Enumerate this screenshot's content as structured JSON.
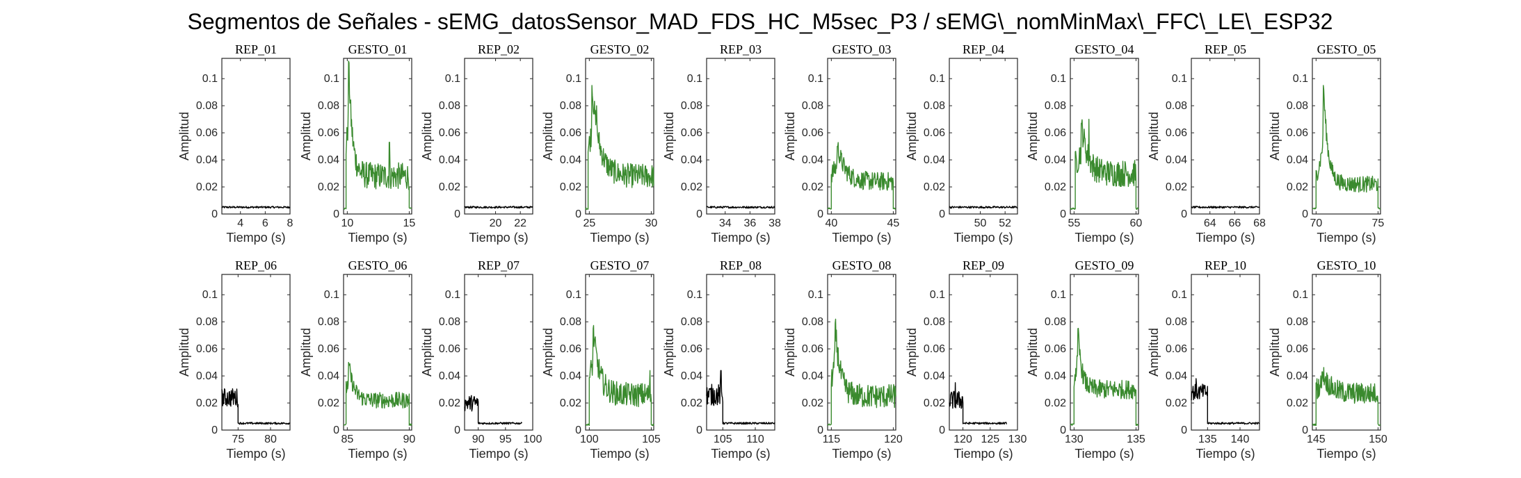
{
  "title": "Segmentos de Señales - sEMG_datosSensor_MAD_FDS_HC_M5sec_P3 / sEMG\\_nomMinMax\\_FFC\\_LE\\_ESP32",
  "colors": {
    "rep": "#000000",
    "gesto": "#3a8a2e"
  },
  "chart_data": [
    {
      "type": "line",
      "title": "REP_01",
      "xlabel": "Tiempo (s)",
      "ylabel": "Amplitud",
      "kind": "rep",
      "xlim": [
        2.5,
        8
      ],
      "xticks": [
        4,
        6,
        8
      ],
      "ylim": [
        0,
        0.115
      ],
      "yticks": [
        0,
        0.02,
        0.04,
        0.06,
        0.08,
        0.1
      ],
      "segments": [
        {
          "x0": 2.5,
          "x1": 8,
          "base": 0.005,
          "noise": 0.0007
        }
      ]
    },
    {
      "type": "line",
      "title": "GESTO_01",
      "xlabel": "Tiempo (s)",
      "ylabel": "Amplitud",
      "kind": "gesto",
      "xlim": [
        9.7,
        15.2
      ],
      "xticks": [
        10,
        15
      ],
      "ylim": [
        0,
        0.115
      ],
      "yticks": [
        0,
        0.02,
        0.04,
        0.06,
        0.08,
        0.1
      ],
      "segments": [
        {
          "x0": 9.7,
          "x1": 9.9,
          "base": 0.004,
          "noise": 0.0006
        },
        {
          "x0": 9.9,
          "x1": 15.0,
          "base": 0.028,
          "noise": 0.01,
          "peak": 0.113,
          "peak_x": 10.1,
          "decay": 0.3,
          "spike": 0.053,
          "spike_x": 13.4
        },
        {
          "x0": 15.0,
          "x1": 15.2,
          "base": 0.004,
          "noise": 0.0006
        }
      ]
    },
    {
      "type": "line",
      "title": "REP_02",
      "xlabel": "Tiempo (s)",
      "ylabel": "Amplitud",
      "kind": "rep",
      "xlim": [
        17.5,
        23
      ],
      "xticks": [
        20,
        22
      ],
      "ylim": [
        0,
        0.115
      ],
      "yticks": [
        0,
        0.02,
        0.04,
        0.06,
        0.08,
        0.1
      ],
      "segments": [
        {
          "x0": 17.5,
          "x1": 23,
          "base": 0.005,
          "noise": 0.0007
        }
      ]
    },
    {
      "type": "line",
      "title": "GESTO_02",
      "xlabel": "Tiempo (s)",
      "ylabel": "Amplitud",
      "kind": "gesto",
      "xlim": [
        24.7,
        30.2
      ],
      "xticks": [
        25,
        30
      ],
      "ylim": [
        0,
        0.115
      ],
      "yticks": [
        0,
        0.02,
        0.04,
        0.06,
        0.08,
        0.1
      ],
      "segments": [
        {
          "x0": 24.7,
          "x1": 24.9,
          "base": 0.004,
          "noise": 0.0006
        },
        {
          "x0": 24.9,
          "x1": 30.2,
          "base": 0.028,
          "noise": 0.009,
          "peak": 0.095,
          "peak_x": 25.2,
          "decay": 0.6,
          "spike": 0.08,
          "spike_x": 25.6
        }
      ]
    },
    {
      "type": "line",
      "title": "REP_03",
      "xlabel": "Tiempo (s)",
      "ylabel": "Amplitud",
      "kind": "rep",
      "xlim": [
        32.5,
        38
      ],
      "xticks": [
        34,
        36,
        38
      ],
      "ylim": [
        0,
        0.115
      ],
      "yticks": [
        0,
        0.02,
        0.04,
        0.06,
        0.08,
        0.1
      ],
      "segments": [
        {
          "x0": 32.5,
          "x1": 38,
          "base": 0.005,
          "noise": 0.0007
        }
      ]
    },
    {
      "type": "line",
      "title": "GESTO_03",
      "xlabel": "Tiempo (s)",
      "ylabel": "Amplitud",
      "kind": "gesto",
      "xlim": [
        39.7,
        45.2
      ],
      "xticks": [
        40,
        45
      ],
      "ylim": [
        0,
        0.115
      ],
      "yticks": [
        0,
        0.02,
        0.04,
        0.06,
        0.08,
        0.1
      ],
      "segments": [
        {
          "x0": 39.7,
          "x1": 40.0,
          "base": 0.004,
          "noise": 0.0006
        },
        {
          "x0": 40.0,
          "x1": 45.0,
          "base": 0.024,
          "noise": 0.007,
          "peak": 0.05,
          "peak_x": 40.5,
          "decay": 0.6
        },
        {
          "x0": 45.0,
          "x1": 45.2,
          "base": 0.004,
          "noise": 0.0006
        }
      ]
    },
    {
      "type": "line",
      "title": "REP_04",
      "xlabel": "Tiempo (s)",
      "ylabel": "Amplitud",
      "kind": "rep",
      "xlim": [
        47.5,
        53
      ],
      "xticks": [
        50,
        52
      ],
      "ylim": [
        0,
        0.115
      ],
      "yticks": [
        0,
        0.02,
        0.04,
        0.06,
        0.08,
        0.1
      ],
      "segments": [
        {
          "x0": 47.5,
          "x1": 53,
          "base": 0.005,
          "noise": 0.0007
        }
      ]
    },
    {
      "type": "line",
      "title": "GESTO_04",
      "xlabel": "Tiempo (s)",
      "ylabel": "Amplitud",
      "kind": "gesto",
      "xlim": [
        54.7,
        60.2
      ],
      "xticks": [
        55,
        60
      ],
      "ylim": [
        0,
        0.115
      ],
      "yticks": [
        0,
        0.02,
        0.04,
        0.06,
        0.08,
        0.1
      ],
      "segments": [
        {
          "x0": 54.7,
          "x1": 55.1,
          "base": 0.004,
          "noise": 0.0006
        },
        {
          "x0": 55.1,
          "x1": 60.0,
          "base": 0.03,
          "noise": 0.01,
          "peak": 0.067,
          "peak_x": 55.6,
          "decay": 0.5,
          "spike": 0.07,
          "spike_x": 56.2
        },
        {
          "x0": 60.0,
          "x1": 60.2,
          "base": 0.004,
          "noise": 0.0006
        }
      ]
    },
    {
      "type": "line",
      "title": "REP_05",
      "xlabel": "Tiempo (s)",
      "ylabel": "Amplitud",
      "kind": "rep",
      "xlim": [
        62.5,
        68
      ],
      "xticks": [
        64,
        66,
        68
      ],
      "ylim": [
        0,
        0.115
      ],
      "yticks": [
        0,
        0.02,
        0.04,
        0.06,
        0.08,
        0.1
      ],
      "segments": [
        {
          "x0": 62.5,
          "x1": 68,
          "base": 0.005,
          "noise": 0.0007
        }
      ]
    },
    {
      "type": "line",
      "title": "GESTO_05",
      "xlabel": "Tiempo (s)",
      "ylabel": "Amplitud",
      "kind": "gesto",
      "xlim": [
        69.7,
        75.2
      ],
      "xticks": [
        70,
        75
      ],
      "ylim": [
        0,
        0.115
      ],
      "yticks": [
        0,
        0.02,
        0.04,
        0.06,
        0.08,
        0.1
      ],
      "segments": [
        {
          "x0": 69.7,
          "x1": 70.0,
          "base": 0.004,
          "noise": 0.0006
        },
        {
          "x0": 70.0,
          "x1": 75.0,
          "base": 0.022,
          "noise": 0.006,
          "peak": 0.095,
          "peak_x": 70.6,
          "decay": 0.35
        },
        {
          "x0": 75.0,
          "x1": 75.2,
          "base": 0.004,
          "noise": 0.0006
        }
      ]
    },
    {
      "type": "line",
      "title": "REP_06",
      "xlabel": "Tiempo (s)",
      "ylabel": "Amplitud",
      "kind": "rep",
      "xlim": [
        72.5,
        83
      ],
      "xticks": [
        75,
        80
      ],
      "ylim": [
        0,
        0.115
      ],
      "yticks": [
        0,
        0.02,
        0.04,
        0.06,
        0.08,
        0.1
      ],
      "segments": [
        {
          "x0": 72.5,
          "x1": 75.0,
          "base": 0.024,
          "noise": 0.007
        },
        {
          "x0": 75.0,
          "x1": 83,
          "base": 0.005,
          "noise": 0.0007
        }
      ]
    },
    {
      "type": "line",
      "title": "GESTO_06",
      "xlabel": "Tiempo (s)",
      "ylabel": "Amplitud",
      "kind": "gesto",
      "xlim": [
        84.7,
        90.2
      ],
      "xticks": [
        85,
        90
      ],
      "ylim": [
        0,
        0.115
      ],
      "yticks": [
        0,
        0.02,
        0.04,
        0.06,
        0.08,
        0.1
      ],
      "segments": [
        {
          "x0": 84.7,
          "x1": 84.9,
          "base": 0.004,
          "noise": 0.0006
        },
        {
          "x0": 84.9,
          "x1": 90.0,
          "base": 0.022,
          "noise": 0.006,
          "peak": 0.05,
          "peak_x": 85.1,
          "decay": 0.4
        },
        {
          "x0": 90.0,
          "x1": 90.2,
          "base": 0.004,
          "noise": 0.0006
        }
      ]
    },
    {
      "type": "line",
      "title": "REP_07",
      "xlabel": "Tiempo (s)",
      "ylabel": "Amplitud",
      "kind": "rep",
      "xlim": [
        87.5,
        100
      ],
      "xticks": [
        90,
        95,
        100
      ],
      "ylim": [
        0,
        0.115
      ],
      "yticks": [
        0,
        0.02,
        0.04,
        0.06,
        0.08,
        0.1
      ],
      "segments": [
        {
          "x0": 87.5,
          "x1": 90.0,
          "base": 0.02,
          "noise": 0.006
        },
        {
          "x0": 90.0,
          "x1": 98,
          "base": 0.005,
          "noise": 0.0007
        }
      ]
    },
    {
      "type": "line",
      "title": "GESTO_07",
      "xlabel": "Tiempo (s)",
      "ylabel": "Amplitud",
      "kind": "gesto",
      "xlim": [
        99.7,
        105.2
      ],
      "xticks": [
        100,
        105
      ],
      "ylim": [
        0,
        0.115
      ],
      "yticks": [
        0,
        0.02,
        0.04,
        0.06,
        0.08,
        0.1
      ],
      "segments": [
        {
          "x0": 99.7,
          "x1": 100.0,
          "base": 0.004,
          "noise": 0.0006
        },
        {
          "x0": 100.0,
          "x1": 105.0,
          "base": 0.026,
          "noise": 0.009,
          "peak": 0.075,
          "peak_x": 100.3,
          "decay": 0.5,
          "spike": 0.044,
          "spike_x": 104.9
        },
        {
          "x0": 105.0,
          "x1": 105.2,
          "base": 0.004,
          "noise": 0.0006
        }
      ]
    },
    {
      "type": "line",
      "title": "REP_08",
      "xlabel": "Tiempo (s)",
      "ylabel": "Amplitud",
      "kind": "rep",
      "xlim": [
        102.5,
        113
      ],
      "xticks": [
        105,
        110
      ],
      "ylim": [
        0,
        0.115
      ],
      "yticks": [
        0,
        0.02,
        0.04,
        0.06,
        0.08,
        0.1
      ],
      "segments": [
        {
          "x0": 102.5,
          "x1": 105.0,
          "base": 0.026,
          "noise": 0.008,
          "spike": 0.044,
          "spike_x": 104.7
        },
        {
          "x0": 105.0,
          "x1": 113,
          "base": 0.005,
          "noise": 0.0007
        }
      ]
    },
    {
      "type": "line",
      "title": "GESTO_08",
      "xlabel": "Tiempo (s)",
      "ylabel": "Amplitud",
      "kind": "gesto",
      "xlim": [
        114.7,
        120.2
      ],
      "xticks": [
        115,
        120
      ],
      "ylim": [
        0,
        0.115
      ],
      "yticks": [
        0,
        0.02,
        0.04,
        0.06,
        0.08,
        0.1
      ],
      "segments": [
        {
          "x0": 114.7,
          "x1": 115.0,
          "base": 0.004,
          "noise": 0.0006
        },
        {
          "x0": 115.0,
          "x1": 120.2,
          "base": 0.025,
          "noise": 0.009,
          "peak": 0.079,
          "peak_x": 115.3,
          "decay": 0.4
        }
      ]
    },
    {
      "type": "line",
      "title": "REP_09",
      "xlabel": "Tiempo (s)",
      "ylabel": "Amplitud",
      "kind": "rep",
      "xlim": [
        117.5,
        130
      ],
      "xticks": [
        120,
        125,
        130
      ],
      "ylim": [
        0,
        0.115
      ],
      "yticks": [
        0,
        0.02,
        0.04,
        0.06,
        0.08,
        0.1
      ],
      "segments": [
        {
          "x0": 117.5,
          "x1": 120.0,
          "base": 0.022,
          "noise": 0.007,
          "spike": 0.035,
          "spike_x": 118.6
        },
        {
          "x0": 120.0,
          "x1": 128,
          "base": 0.005,
          "noise": 0.0007
        }
      ]
    },
    {
      "type": "line",
      "title": "GESTO_09",
      "xlabel": "Tiempo (s)",
      "ylabel": "Amplitud",
      "kind": "gesto",
      "xlim": [
        129.7,
        135.2
      ],
      "xticks": [
        130,
        135
      ],
      "ylim": [
        0,
        0.115
      ],
      "yticks": [
        0,
        0.02,
        0.04,
        0.06,
        0.08,
        0.1
      ],
      "segments": [
        {
          "x0": 129.7,
          "x1": 130.0,
          "base": 0.004,
          "noise": 0.0006
        },
        {
          "x0": 130.0,
          "x1": 135.0,
          "base": 0.03,
          "noise": 0.007,
          "peak": 0.075,
          "peak_x": 130.3,
          "decay": 0.3
        },
        {
          "x0": 135.0,
          "x1": 135.2,
          "base": 0.004,
          "noise": 0.0006
        }
      ]
    },
    {
      "type": "line",
      "title": "REP_10",
      "xlabel": "Tiempo (s)",
      "ylabel": "Amplitud",
      "kind": "rep",
      "xlim": [
        132.5,
        143
      ],
      "xticks": [
        135,
        140
      ],
      "ylim": [
        0,
        0.115
      ],
      "yticks": [
        0,
        0.02,
        0.04,
        0.06,
        0.08,
        0.1
      ],
      "segments": [
        {
          "x0": 132.5,
          "x1": 135.0,
          "base": 0.028,
          "noise": 0.006,
          "spike": 0.038,
          "spike_x": 133.2
        },
        {
          "x0": 135.0,
          "x1": 143,
          "base": 0.005,
          "noise": 0.0007
        }
      ]
    },
    {
      "type": "line",
      "title": "GESTO_10",
      "xlabel": "Tiempo (s)",
      "ylabel": "Amplitud",
      "kind": "gesto",
      "xlim": [
        144.7,
        150.2
      ],
      "xticks": [
        145,
        150
      ],
      "ylim": [
        0,
        0.115
      ],
      "yticks": [
        0,
        0.02,
        0.04,
        0.06,
        0.08,
        0.1
      ],
      "segments": [
        {
          "x0": 144.7,
          "x1": 145.0,
          "base": 0.004,
          "noise": 0.0006
        },
        {
          "x0": 145.0,
          "x1": 150.0,
          "base": 0.027,
          "noise": 0.008,
          "peak": 0.043,
          "peak_x": 145.5,
          "decay": 0.6
        },
        {
          "x0": 150.0,
          "x1": 150.2,
          "base": 0.004,
          "noise": 0.0006
        }
      ]
    }
  ]
}
